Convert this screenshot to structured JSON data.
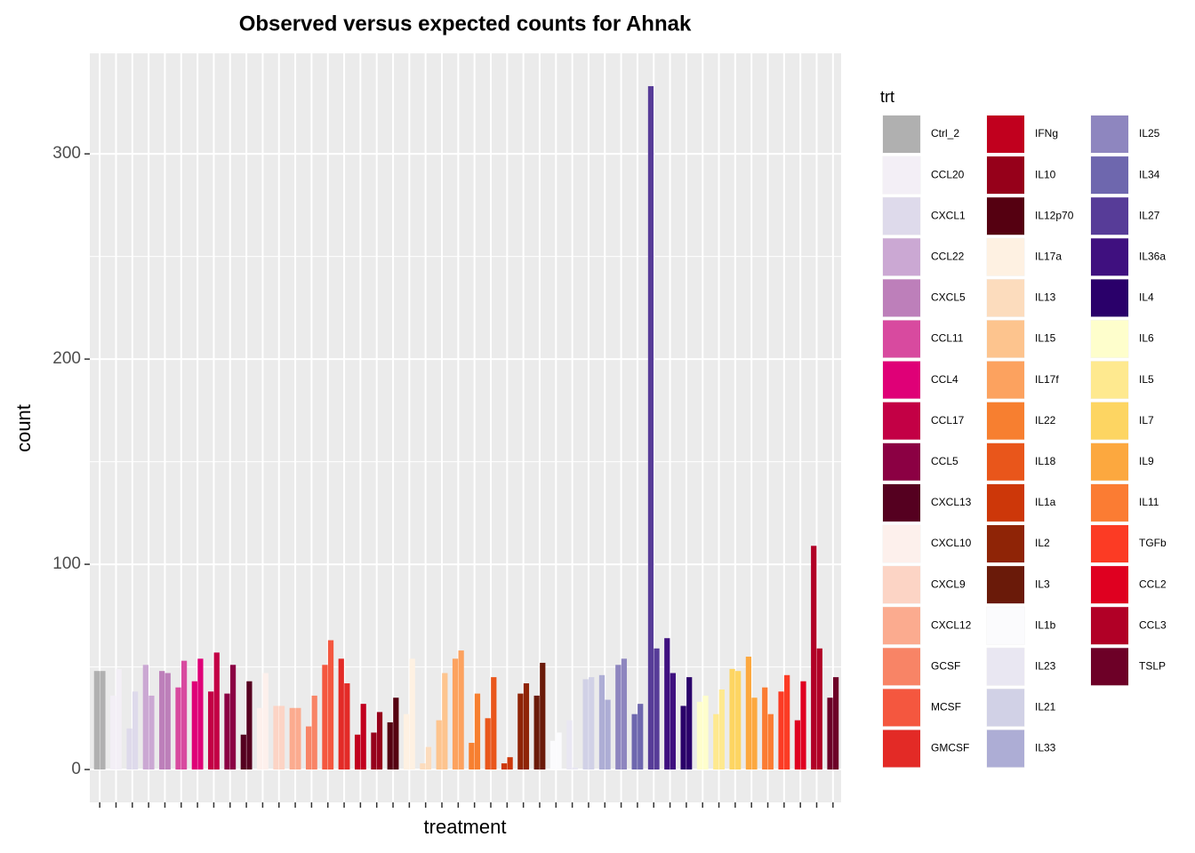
{
  "chart_data": {
    "type": "bar",
    "title": "Observed versus expected counts for Ahnak",
    "x_label": "treatment",
    "y_label": "count",
    "legend_title": "trt",
    "categories": [
      "Ctrl_2",
      "CCL20",
      "CXCL1",
      "CCL22",
      "CXCL5",
      "CCL11",
      "CCL4",
      "CCL17",
      "CCL5",
      "CXCL13",
      "CXCL10",
      "CXCL9",
      "CXCL12",
      "GCSF",
      "MCSF",
      "GMCSF",
      "IFNg",
      "IL10",
      "IL12p70",
      "IL17a",
      "IL13",
      "IL15",
      "IL17f",
      "IL22",
      "IL18",
      "IL1a",
      "IL2",
      "IL3",
      "IL1b",
      "IL23",
      "IL21",
      "IL33",
      "IL25",
      "IL34",
      "IL27",
      "IL36a",
      "IL4",
      "IL6",
      "IL5",
      "IL7",
      "IL9",
      "IL11",
      "TGFb",
      "CCL2",
      "CCL3",
      "TSLP"
    ],
    "colors": [
      "#b0b0b0",
      "#f3eff6",
      "#dedaeb",
      "#cba8d3",
      "#bd7fba",
      "#d84a9f",
      "#df0077",
      "#c30045",
      "#8b0043",
      "#550020",
      "#fdf0ec",
      "#fcd4c5",
      "#fbab8f",
      "#f88466",
      "#f4573f",
      "#e32a26",
      "#c1001e",
      "#96001a",
      "#550011",
      "#fef1e2",
      "#fcdcbd",
      "#fdc48e",
      "#fca25f",
      "#f77f30",
      "#e9561b",
      "#cd3709",
      "#8f2406",
      "#6a1a09",
      "#fbfbfd",
      "#e9e7f2",
      "#d1d1e6",
      "#adadd5",
      "#8e86bf",
      "#6e67ae",
      "#573c98",
      "#3f107f",
      "#2a006a",
      "#fefecc",
      "#fee98f",
      "#fdd562",
      "#fca83f",
      "#fb7c33",
      "#fc3b24",
      "#df0020",
      "#b10026",
      "#6d0027"
    ],
    "series": [
      {
        "values": [
          48,
          36,
          20,
          51,
          48,
          40,
          43,
          38,
          37,
          17,
          30,
          31,
          30,
          21,
          51,
          54,
          17,
          18,
          23,
          27,
          3,
          24,
          54,
          13,
          25,
          3,
          37,
          36,
          14,
          24,
          44,
          46,
          51,
          27,
          333,
          64,
          31,
          33,
          27,
          49,
          55,
          40,
          38,
          24,
          109,
          35
        ]
      },
      {
        "values": [
          48,
          49,
          38,
          36,
          47,
          53,
          54,
          57,
          51,
          43,
          47,
          31,
          30,
          36,
          63,
          42,
          32,
          28,
          35,
          54,
          11,
          47,
          58,
          37,
          45,
          6,
          42,
          52,
          18,
          1,
          45,
          34,
          54,
          32,
          59,
          47,
          45,
          36,
          39,
          48,
          35,
          27,
          46,
          43,
          59,
          45
        ]
      }
    ],
    "ylim": [
      -16,
      349
    ],
    "yticks": [
      0,
      100,
      200,
      300
    ],
    "grid": true
  }
}
